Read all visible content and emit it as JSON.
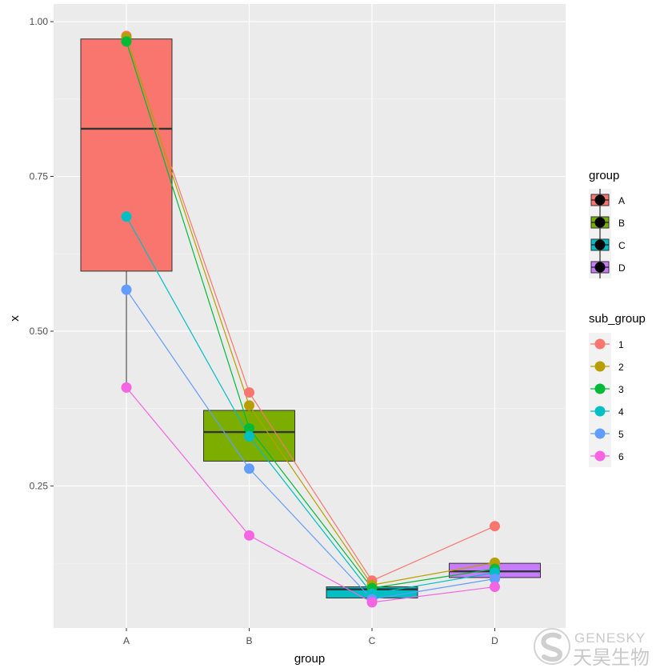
{
  "chart_data": {
    "type": "box+line+scatter",
    "xlabel": "group",
    "ylabel": "x",
    "categories": [
      "A",
      "B",
      "C",
      "D"
    ],
    "ylim": [
      0.0,
      1.03
    ],
    "yticks": [
      0.25,
      0.5,
      0.75,
      1.0
    ],
    "ytick_labels": [
      "0.25",
      "0.50",
      "0.75",
      "1.00"
    ],
    "grid": true,
    "legend_placement": "right",
    "boxes": [
      {
        "group": "A",
        "fill": "#F8766D",
        "q1": 0.597,
        "median": 0.827,
        "q3": 0.972,
        "lower": 0.409,
        "upper": 0.977
      },
      {
        "group": "B",
        "fill": "#7CAE00",
        "q1": 0.29,
        "median": 0.337,
        "q3": 0.372,
        "lower": 0.29,
        "upper": 0.372
      },
      {
        "group": "C",
        "fill": "#00BFC4",
        "q1": 0.069,
        "median": 0.083,
        "q3": 0.087,
        "lower": 0.069,
        "upper": 0.087
      },
      {
        "group": "D",
        "fill": "#C77CFF",
        "q1": 0.102,
        "median": 0.112,
        "q3": 0.125,
        "lower": 0.102,
        "upper": 0.125
      }
    ],
    "series": [
      {
        "name": "1",
        "color": "#F8766D",
        "values": [
          0.977,
          0.401,
          0.097,
          0.185
        ]
      },
      {
        "name": "2",
        "color": "#B79F00",
        "values": [
          0.975,
          0.38,
          0.09,
          0.126
        ]
      },
      {
        "name": "3",
        "color": "#00BA38",
        "values": [
          0.968,
          0.343,
          0.085,
          0.116
        ]
      },
      {
        "name": "4",
        "color": "#00BFC4",
        "values": [
          0.685,
          0.33,
          0.076,
          0.11
        ]
      },
      {
        "name": "5",
        "color": "#619CFF",
        "values": [
          0.567,
          0.278,
          0.067,
          0.1
        ]
      },
      {
        "name": "6",
        "color": "#F564E3",
        "values": [
          0.409,
          0.17,
          0.062,
          0.087
        ]
      }
    ],
    "legends": [
      {
        "title": "group",
        "entries": [
          {
            "label": "A",
            "fill": "#F8766D"
          },
          {
            "label": "B",
            "fill": "#7CAE00"
          },
          {
            "label": "C",
            "fill": "#00BFC4"
          },
          {
            "label": "D",
            "fill": "#C77CFF"
          }
        ]
      },
      {
        "title": "sub_group",
        "entries": [
          {
            "label": "1",
            "color": "#F8766D"
          },
          {
            "label": "2",
            "color": "#B79F00"
          },
          {
            "label": "3",
            "color": "#00BA38"
          },
          {
            "label": "4",
            "color": "#00BFC4"
          },
          {
            "label": "5",
            "color": "#619CFF"
          },
          {
            "label": "6",
            "color": "#F564E3"
          }
        ]
      }
    ]
  },
  "watermark": {
    "latin": "GENESKY",
    "cjk": "天昊生物"
  }
}
